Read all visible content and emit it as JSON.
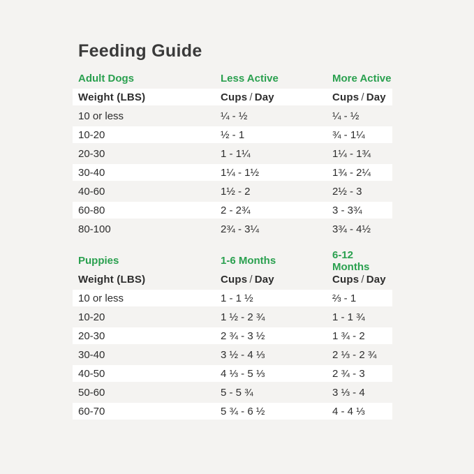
{
  "colors": {
    "background": "#f4f3f1",
    "accent_green": "#2aa04f",
    "row_white": "#ffffff",
    "text": "#2d2d2d",
    "title": "#3a3a3a"
  },
  "title": "Feeding Guide",
  "adult": {
    "section_label": "Adult Dogs",
    "col2_header": "Less Active",
    "col3_header": "More Active",
    "weight_header": "Weight (LBS)",
    "cups_word": "Cups",
    "slash": "/",
    "day_word": "Day",
    "rows": [
      {
        "weight": "10 or less",
        "cups_a": "¼ - ½",
        "cups_b": "¼ - ½"
      },
      {
        "weight": "10-20",
        "cups_a": "½ - 1",
        "cups_b": "¾ - 1¼"
      },
      {
        "weight": "20-30",
        "cups_a": "1 - 1¼",
        "cups_b": "1¼ - 1¾"
      },
      {
        "weight": "30-40",
        "cups_a": "1¼ - 1½",
        "cups_b": "1¾ - 2¼"
      },
      {
        "weight": "40-60",
        "cups_a": "1½ - 2",
        "cups_b": "2½ - 3"
      },
      {
        "weight": "60-80",
        "cups_a": "2 - 2¾",
        "cups_b": "3 - 3¾"
      },
      {
        "weight": "80-100",
        "cups_a": "2¾ - 3¼",
        "cups_b": "3¾ - 4½"
      }
    ]
  },
  "puppies": {
    "section_label": "Puppies",
    "col2_header": "1-6 Months",
    "col3_header": "6-12 Months",
    "weight_header": "Weight (LBS)",
    "cups_word": "Cups",
    "slash": "/",
    "day_word": "Day",
    "rows": [
      {
        "weight": "10 or less",
        "cups_a": "1 - 1 ½",
        "cups_b": "⅔ - 1"
      },
      {
        "weight": "10-20",
        "cups_a": "1 ½ - 2 ¾",
        "cups_b": "1 - 1 ¾"
      },
      {
        "weight": "20-30",
        "cups_a": "2 ¾ - 3 ½",
        "cups_b": "1 ¾ - 2"
      },
      {
        "weight": "30-40",
        "cups_a": "3 ½ - 4 ⅓",
        "cups_b": "2 ⅓ - 2 ¾"
      },
      {
        "weight": "40-50",
        "cups_a": "4 ⅓ - 5 ⅓",
        "cups_b": "2 ¾ - 3"
      },
      {
        "weight": "50-60",
        "cups_a": "5 - 5 ¾",
        "cups_b": "3 ⅓ - 4"
      },
      {
        "weight": "60-70",
        "cups_a": "5 ¾ - 6 ½",
        "cups_b": "4 - 4 ⅓"
      }
    ]
  }
}
